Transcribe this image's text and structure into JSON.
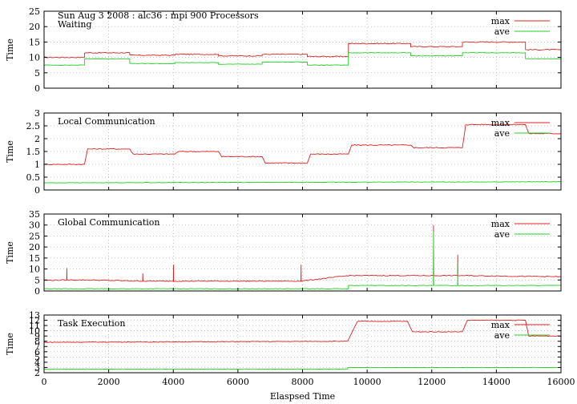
{
  "figure": {
    "header": "Sun Aug 3 2008 : alc36 : mpi 900 Processors",
    "xlabel": "Elaspsed Time",
    "colors": {
      "max": "#e02020",
      "ave": "#20d020",
      "grid": "#aaaaaa"
    }
  },
  "chart_data": [
    {
      "type": "line",
      "title": "Waiting",
      "ylabel": "Time",
      "xlim": [
        0,
        16000
      ],
      "ylim": [
        0,
        25
      ],
      "yticks": [
        0,
        5,
        10,
        15,
        20,
        25
      ],
      "xticks": [],
      "grid": true,
      "legend": "top-right",
      "series": [
        {
          "name": "max",
          "x": [
            0,
            1250,
            1251,
            2650,
            2651,
            4050,
            4051,
            5400,
            5401,
            6750,
            6751,
            8150,
            8151,
            9420,
            9421,
            11350,
            11351,
            12950,
            12951,
            14900,
            14901,
            16000
          ],
          "y": [
            10.0,
            10.0,
            11.5,
            11.5,
            10.7,
            10.7,
            11.0,
            11.0,
            10.5,
            10.5,
            11.0,
            11.0,
            10.3,
            10.3,
            14.5,
            14.5,
            13.5,
            13.5,
            15.0,
            15.0,
            12.5,
            12.5
          ]
        },
        {
          "name": "ave",
          "x": [
            0,
            1250,
            1251,
            2650,
            2651,
            4050,
            4051,
            5400,
            5401,
            6750,
            6751,
            8150,
            8151,
            9420,
            9421,
            11350,
            11351,
            12950,
            12951,
            14900,
            14901,
            16000
          ],
          "y": [
            7.5,
            7.5,
            9.5,
            9.5,
            8.0,
            8.0,
            8.3,
            8.3,
            7.8,
            7.8,
            8.5,
            8.5,
            7.5,
            7.5,
            11.5,
            11.5,
            10.5,
            10.5,
            11.5,
            11.5,
            9.5,
            9.5
          ]
        }
      ]
    },
    {
      "type": "line",
      "title": "Local Communication",
      "ylabel": "Time",
      "xlim": [
        0,
        16000
      ],
      "ylim": [
        0,
        3
      ],
      "yticks": [
        0,
        0.5,
        1,
        1.5,
        2,
        2.5,
        3
      ],
      "xticks": [],
      "grid": true,
      "legend": "top-right",
      "series": [
        {
          "name": "max",
          "x": [
            0,
            1250,
            1350,
            2650,
            2750,
            4050,
            4150,
            5400,
            5500,
            6750,
            6850,
            8150,
            8250,
            9420,
            9520,
            11350,
            11450,
            12950,
            13050,
            14900,
            15000,
            16000
          ],
          "y": [
            1.0,
            1.0,
            1.6,
            1.6,
            1.4,
            1.4,
            1.5,
            1.5,
            1.3,
            1.3,
            1.05,
            1.05,
            1.4,
            1.4,
            1.75,
            1.75,
            1.65,
            1.65,
            2.55,
            2.55,
            2.2,
            2.2
          ]
        },
        {
          "name": "ave",
          "x": [
            0,
            16000
          ],
          "y": [
            0.28,
            0.32
          ]
        }
      ]
    },
    {
      "type": "line",
      "title": "Global Communication",
      "ylabel": "Time",
      "xlim": [
        0,
        16000
      ],
      "ylim": [
        0,
        35
      ],
      "yticks": [
        0,
        5,
        10,
        15,
        20,
        25,
        30,
        35
      ],
      "xticks": [],
      "grid": true,
      "legend": "top-right",
      "series": [
        {
          "name": "max",
          "x": [
            0,
            700,
            705,
            710,
            1300,
            3050,
            3055,
            3060,
            4000,
            4005,
            4010,
            7950,
            7955,
            7960,
            9420,
            12050,
            12055,
            12060,
            12800,
            12805,
            12810,
            16000
          ],
          "y": [
            4.8,
            5.0,
            10.5,
            5.0,
            5.0,
            4.5,
            8.0,
            4.5,
            4.5,
            12.0,
            4.5,
            4.5,
            12.0,
            4.5,
            7.0,
            7.0,
            30.0,
            7.0,
            7.0,
            16.5,
            7.0,
            6.5
          ]
        },
        {
          "name": "ave",
          "x": [
            0,
            9420,
            9421,
            12050,
            12055,
            12060,
            12800,
            12805,
            12810,
            16000
          ],
          "y": [
            1.0,
            1.0,
            2.5,
            2.5,
            27.0,
            2.5,
            2.5,
            13.0,
            2.5,
            2.5
          ]
        }
      ]
    },
    {
      "type": "line",
      "title": "Task Execution",
      "ylabel": "Time",
      "xlim": [
        0,
        16000
      ],
      "ylim": [
        2,
        13
      ],
      "yticks": [
        2,
        3,
        4,
        5,
        6,
        7,
        8,
        9,
        10,
        11,
        12,
        13
      ],
      "xticks": [
        0,
        2000,
        4000,
        6000,
        8000,
        10000,
        12000,
        14000,
        16000
      ],
      "grid": true,
      "legend": "top-right",
      "series": [
        {
          "name": "max",
          "x": [
            0,
            9400,
            9700,
            11250,
            11400,
            12950,
            13100,
            14900,
            15000,
            16000
          ],
          "y": [
            7.8,
            8.0,
            11.8,
            11.8,
            9.8,
            9.8,
            12.0,
            12.0,
            9.0,
            9.0
          ]
        },
        {
          "name": "ave",
          "x": [
            0,
            9400,
            9401,
            16000
          ],
          "y": [
            2.7,
            2.7,
            3.0,
            3.0
          ]
        }
      ]
    }
  ]
}
